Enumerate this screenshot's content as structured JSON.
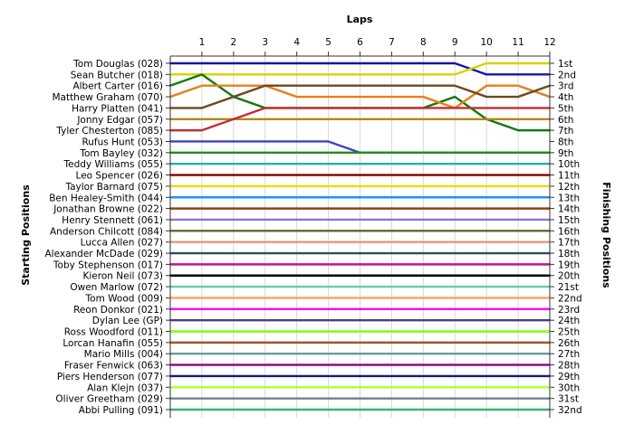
{
  "chart_data": {
    "type": "line",
    "title": "Laps",
    "ylabel_left": "Starting Positions",
    "ylabel_right": "Finishing Positions",
    "laps": [
      0,
      1,
      2,
      3,
      4,
      5,
      6,
      7,
      8,
      9,
      10,
      11,
      12
    ],
    "lap_tick_labels": [
      "1",
      "2",
      "3",
      "4",
      "5",
      "6",
      "7",
      "8",
      "9",
      "10",
      "11",
      "12"
    ],
    "drivers": [
      "Tom Douglas (028)",
      "Sean Butcher (018)",
      "Albert Carter (016)",
      "Matthew Graham (070)",
      "Harry Platten (041)",
      "Jonny Edgar (057)",
      "Tyler Chesterton (085)",
      "Rufus Hunt (053)",
      "Tom Bayley (032)",
      "Teddy Williams (055)",
      "Leo Spencer (026)",
      "Taylor Barnard (075)",
      "Ben Healey-Smith (044)",
      "Jonathan Browne (022)",
      "Henry Stennett (061)",
      "Anderson Chilcott (084)",
      "Lucca Allen (027)",
      "Alexander McDade (029)",
      "Toby Stephenson (017)",
      "Kieron Neil (073)",
      "Owen Marlow (072)",
      "Tom Wood (009)",
      "Reon Donkor (021)",
      "Dylan Lee (GP)",
      "Ross Woodford (011)",
      "Lorcan Hanafin (055)",
      "Mario Mills (004)",
      "Fraser Fenwick (063)",
      "Piers Henderson (077)",
      "Alan Klejn (037)",
      "Oliver Greetham (029)",
      "Abbi Pulling (091)"
    ],
    "finishing_labels": [
      "1st",
      "2nd",
      "3rd",
      "4th",
      "5th",
      "6th",
      "7th",
      "8th",
      "9th",
      "10th",
      "11th",
      "12th",
      "13th",
      "14th",
      "15th",
      "16th",
      "17th",
      "18th",
      "19th",
      "20th",
      "21st",
      "22nd",
      "23rd",
      "24th",
      "25th",
      "26th",
      "27th",
      "28th",
      "29th",
      "30th",
      "31st",
      "32nd"
    ],
    "series": [
      {
        "color": "#1414a8",
        "positions": [
          1,
          1,
          1,
          1,
          1,
          1,
          1,
          1,
          1,
          1,
          2,
          2,
          2
        ]
      },
      {
        "color": "#d4d400",
        "positions": [
          2,
          2,
          2,
          2,
          2,
          2,
          2,
          2,
          2,
          2,
          1,
          1,
          1
        ]
      },
      {
        "color": "#0f7a0f",
        "positions": [
          3,
          2,
          4,
          5,
          5,
          5,
          5,
          5,
          5,
          4,
          6,
          7,
          7
        ]
      },
      {
        "color": "#e87f1a",
        "positions": [
          4,
          3,
          3,
          3,
          4,
          4,
          4,
          4,
          4,
          5,
          3,
          3,
          4
        ]
      },
      {
        "color": "#6b4a22",
        "positions": [
          5,
          5,
          4,
          3,
          3,
          3,
          3,
          3,
          3,
          3,
          4,
          4,
          3
        ]
      },
      {
        "color": "#b8860b",
        "positions": [
          6,
          6,
          6,
          6,
          6,
          6,
          6,
          6,
          6,
          6,
          6,
          6,
          6
        ]
      },
      {
        "color": "#c03030",
        "positions": [
          7,
          7,
          6,
          5,
          5,
          5,
          5,
          5,
          5,
          5,
          5,
          5,
          5
        ]
      },
      {
        "color": "#4040c0",
        "positions": [
          8,
          8,
          8,
          8,
          8,
          8,
          9,
          9,
          9,
          9,
          9,
          9,
          9
        ]
      },
      {
        "color": "#228b22",
        "positions": [
          9,
          9,
          9,
          9,
          9,
          9,
          9,
          9,
          9,
          9,
          9,
          9,
          9
        ]
      },
      {
        "color": "#20b2aa",
        "positions": [
          10,
          10,
          10,
          10,
          10,
          10,
          10,
          10,
          10,
          10,
          10,
          10,
          10
        ]
      },
      {
        "color": "#800000",
        "positions": [
          11,
          11,
          11,
          11,
          11,
          11,
          11,
          11,
          11,
          11,
          11,
          11,
          11
        ]
      },
      {
        "color": "#e0e000",
        "positions": [
          12,
          12,
          12,
          12,
          12,
          12,
          12,
          12,
          12,
          12,
          12,
          12,
          12
        ]
      },
      {
        "color": "#1e90ff",
        "positions": [
          13,
          13,
          13,
          13,
          13,
          13,
          13,
          13,
          13,
          13,
          13,
          13,
          13
        ]
      },
      {
        "color": "#8b4513",
        "positions": [
          14,
          14,
          14,
          14,
          14,
          14,
          14,
          14,
          14,
          14,
          14,
          14,
          14
        ]
      },
      {
        "color": "#9370db",
        "positions": [
          15,
          15,
          15,
          15,
          15,
          15,
          15,
          15,
          15,
          15,
          15,
          15,
          15
        ]
      },
      {
        "color": "#556b2f",
        "positions": [
          16,
          16,
          16,
          16,
          16,
          16,
          16,
          16,
          16,
          16,
          16,
          16,
          16
        ]
      },
      {
        "color": "#e9967a",
        "positions": [
          17,
          17,
          17,
          17,
          17,
          17,
          17,
          17,
          17,
          17,
          17,
          17,
          17
        ]
      },
      {
        "color": "#2f4f4f",
        "positions": [
          18,
          18,
          18,
          18,
          18,
          18,
          18,
          18,
          18,
          18,
          18,
          18,
          18
        ]
      },
      {
        "color": "#c71585",
        "positions": [
          19,
          19,
          19,
          19,
          19,
          19,
          19,
          19,
          19,
          19,
          19,
          19,
          19
        ]
      },
      {
        "color": "#000000",
        "positions": [
          20,
          20,
          20,
          20,
          20,
          20,
          20,
          20,
          20,
          20,
          20,
          20,
          20
        ]
      },
      {
        "color": "#66cdaa",
        "positions": [
          21,
          21,
          21,
          21,
          21,
          21,
          21,
          21,
          21,
          21,
          21,
          21,
          21
        ]
      },
      {
        "color": "#f4a460",
        "positions": [
          22,
          22,
          22,
          22,
          22,
          22,
          22,
          22,
          22,
          22,
          22,
          22,
          22
        ]
      },
      {
        "color": "#ff00ff",
        "positions": [
          23,
          23,
          23,
          23,
          23,
          23,
          23,
          23,
          23,
          23,
          23,
          23,
          23
        ]
      },
      {
        "color": "#483d8b",
        "positions": [
          24,
          24,
          24,
          24,
          24,
          24,
          24,
          24,
          24,
          24,
          24,
          24,
          24
        ]
      },
      {
        "color": "#7cfc00",
        "positions": [
          25,
          25,
          25,
          25,
          25,
          25,
          25,
          25,
          25,
          25,
          25,
          25,
          25
        ]
      },
      {
        "color": "#a0522d",
        "positions": [
          26,
          26,
          26,
          26,
          26,
          26,
          26,
          26,
          26,
          26,
          26,
          26,
          26
        ]
      },
      {
        "color": "#5f9ea0",
        "positions": [
          27,
          27,
          27,
          27,
          27,
          27,
          27,
          27,
          27,
          27,
          27,
          27,
          27
        ]
      },
      {
        "color": "#8b008b",
        "positions": [
          28,
          28,
          28,
          28,
          28,
          28,
          28,
          28,
          28,
          28,
          28,
          28,
          28
        ]
      },
      {
        "color": "#191970",
        "positions": [
          29,
          29,
          29,
          29,
          29,
          29,
          29,
          29,
          29,
          29,
          29,
          29,
          29
        ]
      },
      {
        "color": "#adff2f",
        "positions": [
          30,
          30,
          30,
          30,
          30,
          30,
          30,
          30,
          30,
          30,
          30,
          30,
          30
        ]
      },
      {
        "color": "#708090",
        "positions": [
          31,
          31,
          31,
          31,
          31,
          31,
          31,
          31,
          31,
          31,
          31,
          31,
          31
        ]
      },
      {
        "color": "#3cb371",
        "positions": [
          32,
          32,
          32,
          32,
          32,
          32,
          32,
          32,
          32,
          32,
          32,
          32,
          32
        ]
      }
    ],
    "grid": true
  }
}
